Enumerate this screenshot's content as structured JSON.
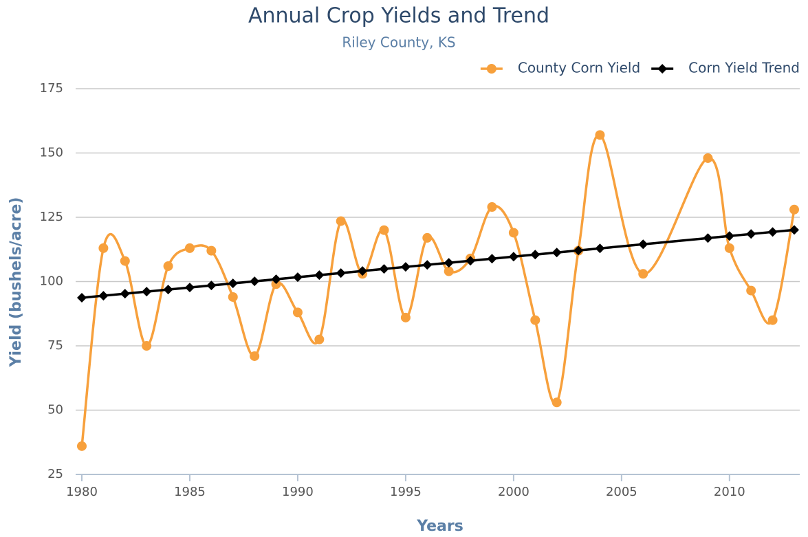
{
  "chart_data": {
    "type": "line",
    "title": "Annual Crop Yields and Trend",
    "subtitle": "Riley County, KS",
    "x_label": "Years",
    "y_label": "Yield (bushels/acre)",
    "x": [
      1980,
      1981,
      1982,
      1983,
      1984,
      1985,
      1986,
      1987,
      1988,
      1989,
      1990,
      1991,
      1992,
      1993,
      1994,
      1995,
      1996,
      1997,
      1998,
      1999,
      2000,
      2001,
      2002,
      2003,
      2004,
      2006,
      2009,
      2010,
      2011,
      2012,
      2013
    ],
    "series": [
      {
        "name": "County Corn Yield",
        "color": "#f7a03c",
        "smooth": true,
        "marker": "circle",
        "values": [
          36,
          113,
          108,
          75,
          106,
          113,
          112,
          94,
          71,
          99,
          88,
          77.5,
          123.5,
          103,
          120,
          86,
          117,
          104,
          109,
          129,
          119,
          85,
          53,
          112,
          157,
          103,
          148,
          113,
          96.5,
          85,
          128
        ]
      },
      {
        "name": "Corn Yield Trend",
        "color": "#000000",
        "smooth": false,
        "marker": "diamond",
        "values": [
          93.7,
          94.5,
          95.3,
          96.1,
          96.9,
          97.7,
          98.5,
          99.3,
          100.1,
          100.9,
          101.7,
          102.5,
          103.3,
          104.1,
          104.9,
          105.7,
          106.5,
          107.3,
          108.1,
          108.9,
          109.7,
          110.5,
          111.3,
          112.1,
          112.9,
          114.5,
          116.9,
          117.7,
          118.5,
          119.3,
          120.1
        ]
      }
    ],
    "xlim": [
      1980,
      2013
    ],
    "xticks": [
      1980,
      1985,
      1990,
      1995,
      2000,
      2005,
      2010
    ],
    "ylim": [
      25,
      175
    ],
    "yticks": [
      25,
      50,
      75,
      100,
      125,
      150,
      175
    ],
    "grid": true,
    "legend": "top-right"
  }
}
